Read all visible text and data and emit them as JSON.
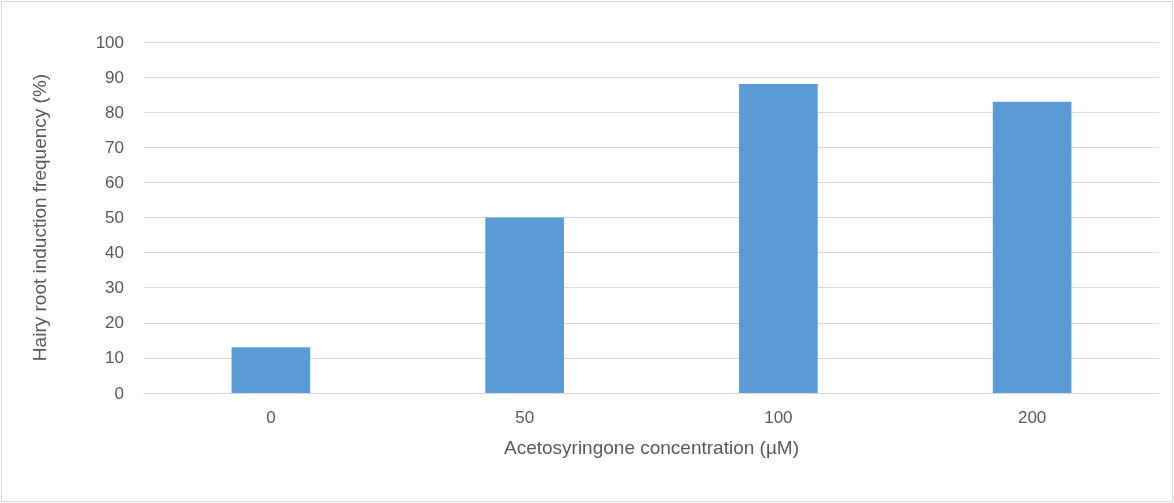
{
  "chart_data": {
    "type": "bar",
    "xlabel": "Acetosyringone concentration (µM)",
    "ylabel": "Hairy root induction frequency (%)",
    "categories": [
      "0",
      "50",
      "100",
      "200"
    ],
    "values": [
      13,
      50,
      88,
      83
    ],
    "color": "#5b9bd5",
    "ylim": [
      0,
      100
    ],
    "yticks": [
      0,
      10,
      20,
      30,
      40,
      50,
      60,
      70,
      80,
      90,
      100
    ],
    "grid": "y"
  }
}
